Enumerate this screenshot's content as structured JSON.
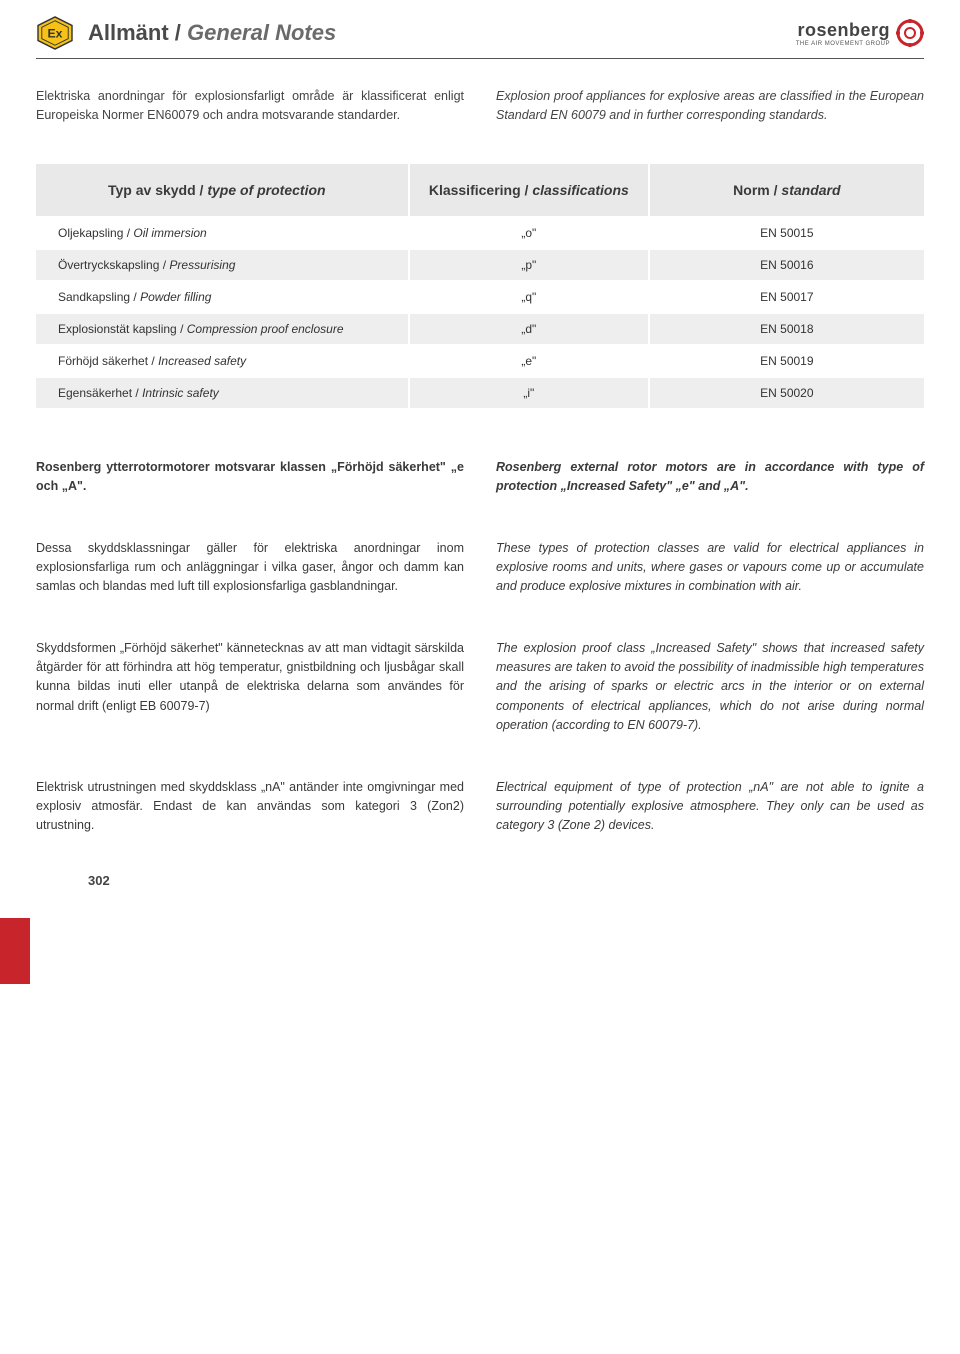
{
  "header": {
    "title_sv": "Allmänt",
    "title_sep": " / ",
    "title_en": "General Notes",
    "ex_label": "Ex",
    "logo_text": "rosenberg",
    "logo_tagline": "THE AIR MOVEMENT GROUP"
  },
  "colors": {
    "accent": "#c7252b",
    "header_bg": "#e9e9e9",
    "row_alt_bg": "#eee",
    "ex_yellow": "#f6c218",
    "text": "#3a3a3a"
  },
  "intro": {
    "sv": "Elektriska anordningar för explosionsfarligt område är klassificerat enligt Europeiska Normer EN60079 och andra motsvarande standarder.",
    "en": "Explosion proof appliances for explosive areas are classified in the European Standard EN 60079 and in further corresponding standards."
  },
  "table": {
    "headers": {
      "type_sv": "Typ av skydd",
      "type_en": "type of protection",
      "class_sv": "Klassificering",
      "class_en": "classifications",
      "norm_sv": "Norm",
      "norm_en": "standard"
    },
    "rows": [
      {
        "sv": "Oljekapsling",
        "en": "Oil immersion",
        "code": "„o\"",
        "norm": "EN 50015"
      },
      {
        "sv": "Övertryckskapsling",
        "en": "Pressurising",
        "code": "„p\"",
        "norm": "EN 50016"
      },
      {
        "sv": "Sandkapsling",
        "en": "Powder filling",
        "code": "„q\"",
        "norm": "EN 50017"
      },
      {
        "sv": "Explosionstät kapsling ",
        "en": "Compression proof enclosure",
        "code": "„d\"",
        "norm": "EN 50018"
      },
      {
        "sv": "Förhöjd säkerhet ",
        "en": "Increased safety",
        "code": "„e\"",
        "norm": "EN 50019"
      },
      {
        "sv": "Egensäkerhet",
        "en": "Intrinsic safety",
        "code": "„i\"",
        "norm": "EN 50020"
      }
    ]
  },
  "sections": [
    {
      "bold": true,
      "sv": "Rosenberg ytterrotormotorer motsvarar klassen „Förhöjd säkerhet\" „e och „A\".",
      "en": "Rosenberg external rotor motors are in accordance with type of protection „Increased Safety\" „e\" and „A\"."
    },
    {
      "bold": false,
      "sv": "Dessa skyddsklassningar gäller för elektriska anordningar inom explosionsfarliga rum och anläggningar i vilka gaser, ångor och damm kan samlas och blandas med luft till explosionsfarliga gasblandningar.",
      "en": "These types of protection classes are valid for electrical appliances in explosive rooms and units, where gases or vapours come up or accumulate and produce explosive mixtures in combination with air."
    },
    {
      "bold": false,
      "sv": "Skyddsformen „Förhöjd säkerhet\" kännetecknas av att man vidtagit särskilda åtgärder för att förhindra att hög temperatur, gnistbildning och ljusbågar skall kunna bildas inuti eller utanpå de elektriska delarna som användes för normal drift (enligt EB 60079-7)",
      "en": "The explosion proof class „Increased Safety\" shows that increased safety measures are taken to avoid the possibility of inadmissible high temperatures and the arising of sparks or electric arcs in the interior or on external components of electrical appliances, which do not arise during normal operation (according to EN 60079-7)."
    },
    {
      "bold": false,
      "sv": "Elektrisk utrustningen med skyddsklass „nA\" antänder inte omgivningar med explosiv atmosfär. Endast de kan användas som kategori 3 (Zon2) utrustning.",
      "en": "Electrical equipment of type of protection „nA\" are not able to ignite a surrounding potentially explosive atmosphere. They only can be used as category 3 (Zone 2) devices."
    }
  ],
  "page_number": "302"
}
